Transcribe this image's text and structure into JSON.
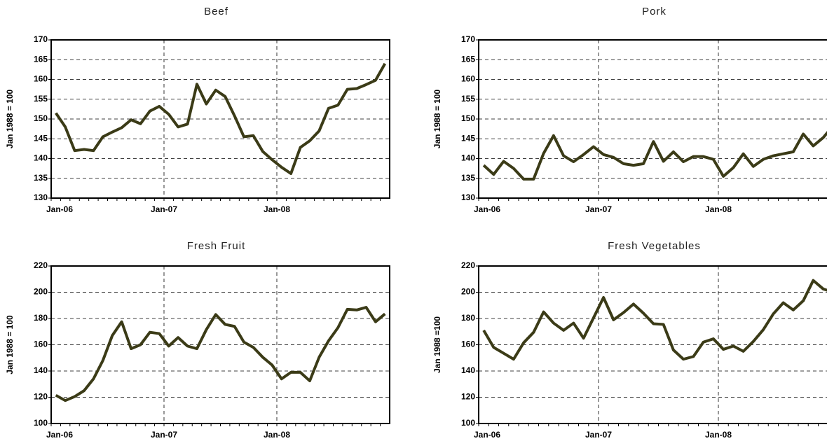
{
  "chart_data": [
    {
      "type": "line",
      "title": "Beef",
      "ylabel": "Jan 1988 = 100",
      "categories": [
        "Jan-06",
        null,
        null,
        null,
        null,
        null,
        null,
        null,
        null,
        null,
        null,
        null,
        "Jan-07",
        null,
        null,
        null,
        null,
        null,
        null,
        null,
        null,
        null,
        null,
        null,
        "Jan-08",
        null,
        null,
        null,
        null,
        null,
        null,
        null,
        null,
        null,
        null,
        null
      ],
      "values": [
        151.5,
        148,
        142,
        142.3,
        142,
        145.5,
        146.7,
        147.8,
        149.8,
        148.8,
        152,
        153.2,
        151.2,
        148,
        148.7,
        158.8,
        153.8,
        157.3,
        155.7,
        150.8,
        145.5,
        145.8,
        141.8,
        139.7,
        137.8,
        136.2,
        142.8,
        144.5,
        147,
        152.7,
        153.5,
        157.5,
        157.7,
        158.7,
        159.8,
        164
      ],
      "color": "#3b3b17",
      "ylim": [
        130,
        170
      ],
      "yticks": [
        130,
        135,
        140,
        145,
        150,
        155,
        160,
        165,
        170
      ],
      "grid": true
    },
    {
      "type": "line",
      "title": "Pork",
      "ylabel": "Jan 1988 = 100",
      "categories": [
        "Jan-06",
        null,
        null,
        null,
        null,
        null,
        null,
        null,
        null,
        null,
        null,
        null,
        "Jan-07",
        null,
        null,
        null,
        null,
        null,
        null,
        null,
        null,
        null,
        null,
        null,
        "Jan-08",
        null,
        null,
        null,
        null,
        null,
        null,
        null,
        null,
        null,
        null,
        null
      ],
      "values": [
        138.3,
        136,
        139.3,
        137.5,
        134.8,
        134.8,
        141.3,
        145.8,
        140.7,
        139.2,
        141,
        143,
        141,
        140.3,
        138.7,
        138.3,
        138.7,
        144.3,
        139.3,
        141.7,
        139.2,
        140.5,
        140.5,
        139.8,
        135.5,
        137.7,
        141.2,
        138,
        139.8,
        140.7,
        141.2,
        141.7,
        146.2,
        143.2,
        145.3,
        148.3
      ],
      "color": "#3b3b17",
      "ylim": [
        130,
        170
      ],
      "yticks": [
        130,
        135,
        140,
        145,
        150,
        155,
        160,
        165,
        170
      ],
      "grid": true
    },
    {
      "type": "line",
      "title": "Fresh Fruit",
      "ylabel": "Jan 1988 = 100",
      "categories": [
        "Jan-06",
        null,
        null,
        null,
        null,
        null,
        null,
        null,
        null,
        null,
        null,
        null,
        "Jan-07",
        null,
        null,
        null,
        null,
        null,
        null,
        null,
        null,
        null,
        null,
        null,
        "Jan-08",
        null,
        null,
        null,
        null,
        null,
        null,
        null,
        null,
        null,
        null,
        null
      ],
      "values": [
        121.5,
        117.5,
        120.5,
        125,
        134,
        148,
        167,
        177.5,
        157,
        160,
        169.5,
        168.5,
        159,
        165.5,
        159,
        157,
        171.5,
        183,
        175.5,
        174,
        162,
        158,
        150.5,
        144.5,
        134,
        139,
        139,
        132.5,
        150.5,
        163,
        173,
        187,
        186.5,
        188.5,
        177.5,
        183.5
      ],
      "color": "#3b3b17",
      "ylim": [
        100,
        220
      ],
      "yticks": [
        100,
        120,
        140,
        160,
        180,
        200,
        220
      ],
      "grid": true
    },
    {
      "type": "line",
      "title": "Fresh Vegetables",
      "ylabel": "Jan 1988 =100",
      "categories": [
        "Jan-06",
        null,
        null,
        null,
        null,
        null,
        null,
        null,
        null,
        null,
        null,
        null,
        "Jan-07",
        null,
        null,
        null,
        null,
        null,
        null,
        null,
        null,
        null,
        null,
        null,
        "Jan-08",
        null,
        null,
        null,
        null,
        null,
        null,
        null,
        null,
        null,
        null,
        null
      ],
      "values": [
        171,
        158,
        153.5,
        149,
        161.5,
        169.5,
        185,
        176.5,
        171,
        176.5,
        165,
        180.5,
        196,
        179,
        184.5,
        191,
        184,
        176,
        175.5,
        156,
        149,
        151,
        162,
        164.5,
        156.5,
        159,
        155,
        162.5,
        171.5,
        183.5,
        192,
        186.5,
        193.5,
        209,
        202.5,
        200
      ],
      "color": "#3b3b17",
      "ylim": [
        100,
        220
      ],
      "yticks": [
        100,
        120,
        140,
        160,
        180,
        200,
        220
      ],
      "grid": true
    }
  ]
}
